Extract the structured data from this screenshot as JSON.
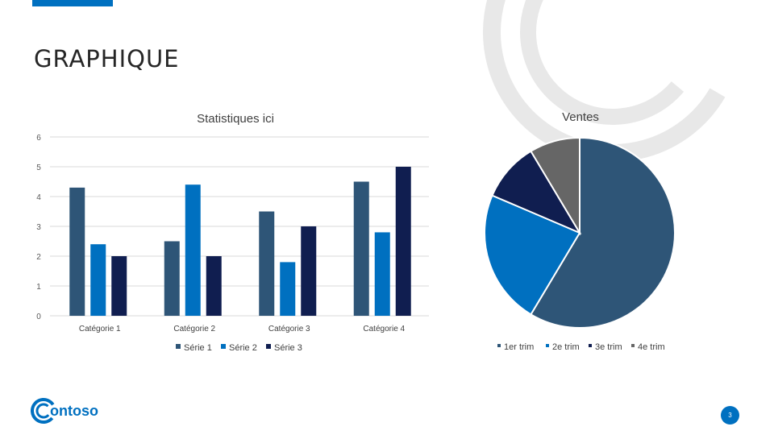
{
  "slide": {
    "title": "GRAPHIQUE",
    "page_number": "3",
    "logo_text": "ontoso"
  },
  "colors": {
    "accent": "#0070c0",
    "series1": "#2e5577",
    "series2": "#0070c0",
    "series3": "#101e50",
    "pie4": "#666666",
    "grid": "#d9d9d9",
    "deco": "#e8e8e8"
  },
  "chart_data": [
    {
      "type": "bar",
      "title": "Statistiques ici",
      "categories": [
        "Catégorie 1",
        "Catégorie 2",
        "Catégorie 3",
        "Catégorie 4"
      ],
      "series": [
        {
          "name": "Série 1",
          "values": [
            4.3,
            2.5,
            3.5,
            4.5
          ],
          "color": "#2e5577"
        },
        {
          "name": "Série 2",
          "values": [
            2.4,
            4.4,
            1.8,
            2.8
          ],
          "color": "#0070c0"
        },
        {
          "name": "Série 3",
          "values": [
            2,
            2,
            3,
            5
          ],
          "color": "#101e50"
        }
      ],
      "ylim": [
        0,
        6
      ],
      "yticks": [
        0,
        1,
        2,
        3,
        4,
        5,
        6
      ],
      "grid": true,
      "legend": "bottom"
    },
    {
      "type": "pie",
      "title": "Ventes",
      "labels": [
        "1er trim",
        "2e trim",
        "3e trim",
        "4e trim"
      ],
      "values": [
        8.2,
        3.2,
        1.4,
        1.2
      ],
      "colors": [
        "#2e5577",
        "#0070c0",
        "#101e50",
        "#666666"
      ],
      "legend": "bottom"
    }
  ]
}
